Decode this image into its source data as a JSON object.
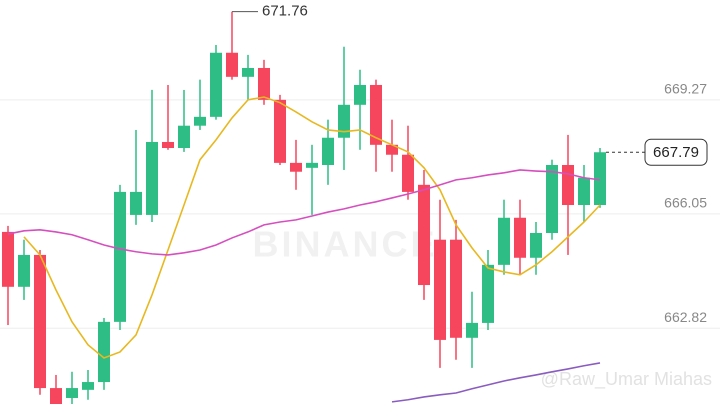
{
  "chart_data": {
    "type": "candlestick",
    "watermark": "BINANCE",
    "credit": "@Raw_Umar Miahas",
    "up_color": "#2ebd85",
    "down_color": "#f6465d",
    "open": [
      665.54,
      663.99,
      664.89,
      661.13,
      660.85,
      661.08,
      661.3,
      663.0,
      666.02,
      666.02,
      668.08,
      667.91,
      668.54,
      668.79,
      670.6,
      669.92,
      670.17,
      669.27,
      667.49,
      667.35,
      667.43,
      668.2,
      669.13,
      669.69,
      668.0,
      667.72,
      666.87,
      665.32,
      665.32,
      662.55,
      662.97,
      664.61,
      665.94,
      664.81,
      665.51,
      667.43,
      666.3,
      666.3
    ],
    "high": [
      665.71,
      665.32,
      665.03,
      661.5,
      661.59,
      661.64,
      663.11,
      666.87,
      668.42,
      669.55,
      669.69,
      669.55,
      669.84,
      670.82,
      671.76,
      670.54,
      670.4,
      669.41,
      668.14,
      668.0,
      668.71,
      670.77,
      670.12,
      669.84,
      668.71,
      668.54,
      667.29,
      666.45,
      665.88,
      663.85,
      665.03,
      666.45,
      666.45,
      665.82,
      667.58,
      668.28,
      667.43,
      667.91
    ],
    "low": [
      662.91,
      663.62,
      660.94,
      660.68,
      660.68,
      660.8,
      661.08,
      662.77,
      665.74,
      665.82,
      667.86,
      667.8,
      668.42,
      668.71,
      669.84,
      669.27,
      669.13,
      667.43,
      666.73,
      666.02,
      666.87,
      667.29,
      667.86,
      667.24,
      667.24,
      666.45,
      663.62,
      661.7,
      661.93,
      661.7,
      662.77,
      664.33,
      664.33,
      664.33,
      665.32,
      664.89,
      665.82,
      666.22
    ],
    "close": [
      663.99,
      664.89,
      661.13,
      660.68,
      661.13,
      661.3,
      663.0,
      666.67,
      666.67,
      668.08,
      667.91,
      668.54,
      668.79,
      670.6,
      669.92,
      670.17,
      669.27,
      667.49,
      667.24,
      667.49,
      668.2,
      669.13,
      669.69,
      668.0,
      667.72,
      666.67,
      664.04,
      662.49,
      662.55,
      662.97,
      664.61,
      665.94,
      664.81,
      665.51,
      667.43,
      666.3,
      667.07,
      667.79
    ],
    "overlays": [
      {
        "color": "#e8b820",
        "values": [
          null,
          665.4,
          664.89,
          663.9,
          663.0,
          662.35,
          661.98,
          662.15,
          662.63,
          663.76,
          665.03,
          666.3,
          667.58,
          668.14,
          668.76,
          669.27,
          669.35,
          669.19,
          668.93,
          668.65,
          668.42,
          668.37,
          668.42,
          668.2,
          668.0,
          667.8,
          667.35,
          666.73,
          665.74,
          665.09,
          664.52,
          664.41,
          664.33,
          664.61,
          664.98,
          665.4,
          665.82,
          666.3
        ]
      },
      {
        "color": "#d64fbf",
        "values": [
          665.48,
          665.57,
          665.6,
          665.54,
          665.46,
          665.32,
          665.17,
          665.06,
          664.98,
          664.92,
          664.89,
          664.95,
          665.03,
          665.17,
          665.37,
          665.54,
          665.74,
          665.82,
          665.88,
          665.99,
          666.1,
          666.19,
          666.3,
          666.39,
          666.5,
          666.61,
          666.73,
          666.87,
          667.01,
          667.07,
          667.15,
          667.21,
          667.29,
          667.26,
          667.24,
          667.18,
          667.07,
          667.01
        ]
      },
      {
        "color": "#8a5cc0",
        "values": [
          null,
          null,
          null,
          null,
          null,
          null,
          null,
          null,
          null,
          null,
          null,
          null,
          null,
          null,
          null,
          null,
          null,
          null,
          null,
          null,
          null,
          null,
          null,
          null,
          660.74,
          660.8,
          660.88,
          660.94,
          660.99,
          661.11,
          661.22,
          661.33,
          661.42,
          661.5,
          661.59,
          661.67,
          661.76,
          661.84
        ]
      }
    ],
    "ylim": [
      660.68,
      672.09
    ],
    "yticks": [
      662.82,
      666.05,
      669.27
    ],
    "grid": true
  }
}
